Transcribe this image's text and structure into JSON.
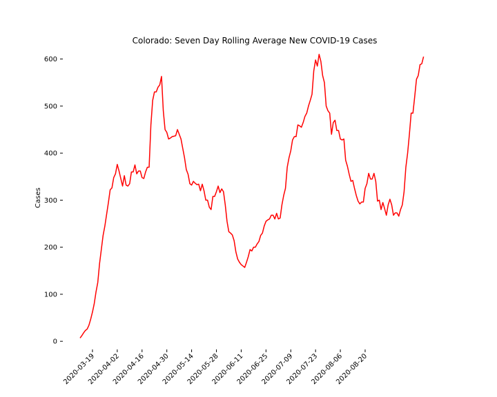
{
  "chart_data": {
    "type": "line",
    "title": "Colorado: Seven Day Rolling Average New COVID-19 Cases",
    "xlabel": "",
    "ylabel": "Cases",
    "ylim": [
      -10,
      620
    ],
    "yticks": [
      0,
      100,
      200,
      300,
      400,
      500,
      600
    ],
    "x_start": "2020-03-12",
    "xticks": [
      "2020-03-19",
      "2020-04-02",
      "2020-04-16",
      "2020-04-30",
      "2020-05-14",
      "2020-05-28",
      "2020-06-11",
      "2020-06-25",
      "2020-07-09",
      "2020-07-23",
      "2020-08-06",
      "2020-08-20"
    ],
    "xtick_rotation": 45,
    "grid": false,
    "legend": "none",
    "line_color": "#ff0000",
    "series": [
      {
        "values": [
          7,
          12,
          18,
          23,
          26,
          34,
          47,
          62,
          80,
          105,
          125,
          165,
          195,
          225,
          245,
          270,
          295,
          322,
          326,
          348,
          356,
          376,
          362,
          346,
          330,
          352,
          332,
          330,
          335,
          360,
          360,
          375,
          356,
          362,
          362,
          348,
          346,
          360,
          370,
          370,
          460,
          512,
          530,
          530,
          540,
          545,
          563,
          490,
          450,
          444,
          430,
          432,
          435,
          436,
          437,
          450,
          440,
          430,
          410,
          390,
          365,
          355,
          335,
          332,
          340,
          336,
          333,
          334,
          320,
          334,
          320,
          300,
          300,
          285,
          280,
          308,
          308,
          318,
          330,
          316,
          324,
          318,
          290,
          255,
          233,
          230,
          226,
          214,
          190,
          175,
          168,
          163,
          160,
          157,
          168,
          180,
          195,
          192,
          200,
          200,
          207,
          212,
          225,
          230,
          245,
          255,
          258,
          260,
          268,
          268,
          260,
          272,
          260,
          262,
          290,
          310,
          325,
          370,
          390,
          405,
          428,
          435,
          435,
          460,
          458,
          455,
          465,
          478,
          485,
          500,
          512,
          525,
          575,
          598,
          585,
          610,
          595,
          565,
          550,
          500,
          490,
          485,
          440,
          465,
          470,
          448,
          448,
          430,
          428,
          430,
          385,
          372,
          355,
          340,
          342,
          325,
          310,
          298,
          292,
          296,
          296,
          325,
          335,
          357,
          345,
          345,
          357,
          340,
          298,
          300,
          280,
          295,
          282,
          268,
          290,
          302,
          290,
          268,
          273,
          273,
          266,
          280,
          290,
          318,
          370,
          400,
          440,
          485,
          485,
          520,
          557,
          565,
          588,
          590,
          605
        ]
      }
    ]
  }
}
